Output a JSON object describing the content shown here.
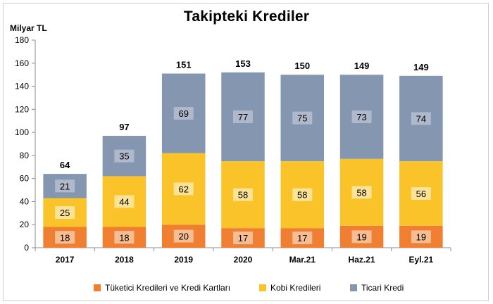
{
  "chart_data": {
    "type": "bar",
    "stacked": true,
    "title": "Takipteki Krediler",
    "ylabel": "Milyar TL",
    "xlabel": "",
    "ylim": [
      0,
      180
    ],
    "yticks": [
      0,
      20,
      40,
      60,
      80,
      100,
      120,
      140,
      160,
      180
    ],
    "categories": [
      "2017",
      "2018",
      "2019",
      "2020",
      "Mar.21",
      "Haz.21",
      "Eyl.21"
    ],
    "series": [
      {
        "name": "Tüketici Kredileri ve Kredi Kartları",
        "color": "#f07f32",
        "values": [
          18,
          18,
          20,
          17,
          17,
          19,
          19
        ]
      },
      {
        "name": "Kobi Kredileri",
        "color": "#fbc32a",
        "values": [
          25,
          44,
          62,
          58,
          58,
          58,
          56
        ]
      },
      {
        "name": "Ticari Kredi",
        "color": "#8596b0",
        "values": [
          21,
          35,
          69,
          77,
          75,
          73,
          74
        ]
      }
    ],
    "totals": [
      64,
      97,
      151,
      153,
      150,
      149,
      149
    ],
    "grid": false,
    "legend_position": "bottom"
  }
}
